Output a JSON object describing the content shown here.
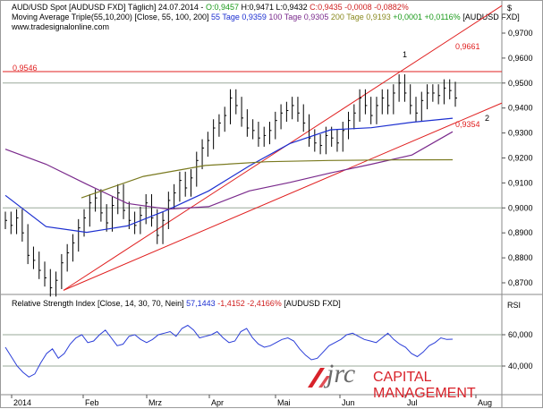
{
  "header": {
    "line1": {
      "symbol": "AUD/USD Spot [AUDUSD FXD]",
      "meta": "Täglich] 24.07.2014 -",
      "open": "O:0,9457",
      "high": "H:0,9471",
      "low": "L:0,9432",
      "close": "C:0,9435",
      "change": "-0,0008 -0,0882%"
    },
    "line2": {
      "label": "Moving Average Triple(55,10,200) [Close, 55, 100, 200]",
      "ma55": "55 Tage 0,9359",
      "ma100": "100 Tage 0,9305",
      "ma200": "200 Tage 0,9193",
      "change": "+0,0001 +0,0116%",
      "symbol": "[AUDUSD FXD]"
    },
    "website": "www.tradesignalonline.com",
    "currency_label": "$"
  },
  "annotations": {
    "level_0_9546": "0,9546",
    "level_0_9661": "0,9661",
    "level_0_9354": "0,9354",
    "marker_1": "1",
    "marker_2": "2"
  },
  "rsi_header": {
    "label": "Relative Strength Index [Close, 14, 30, 70, Nein]",
    "value": "57,1443",
    "change": "-1,4152 -2,4166%",
    "symbol": "[AUDUSD FXD]",
    "axis_label": "RSI"
  },
  "logo": {
    "brand": "jrc",
    "tagline": "CAPITAL MANAGEMENT"
  },
  "colors": {
    "price": "#000000",
    "ma55": "#1c2fd0",
    "ma100": "#7a2a8c",
    "ma200": "#7a7a20",
    "trend": "#e02020",
    "rsi": "#2a3dd8",
    "grid": "#9aa89a",
    "logo_red": "#d8222a",
    "logo_gray": "#6a6a6a"
  },
  "chart_data": [
    {
      "type": "candlestick",
      "title": "AUD/USD Spot [AUDUSD FXD]",
      "ylim": [
        0.865,
        0.98
      ],
      "y_ticks": [
        "0,9700",
        "0,9600",
        "0,9500",
        "0,9400",
        "0,9300",
        "0,9200",
        "0,9100",
        "0,9000",
        "0,8900",
        "0,8800",
        "0,8700"
      ],
      "x_ticks": [
        "2014",
        "Feb",
        "Mrz",
        "Apr",
        "Mai",
        "Jun",
        "Jul",
        "Aug"
      ],
      "horizontal_line": 0.9546,
      "series": [
        {
          "name": "Close",
          "values": [
            0.895,
            0.893,
            0.896,
            0.89,
            0.881,
            0.879,
            0.875,
            0.872,
            0.868,
            0.871,
            0.878,
            0.882,
            0.886,
            0.892,
            0.896,
            0.902,
            0.904,
            0.898,
            0.894,
            0.901,
            0.906,
            0.899,
            0.895,
            0.893,
            0.897,
            0.902,
            0.896,
            0.889,
            0.895,
            0.903,
            0.906,
            0.911,
            0.908,
            0.912,
            0.919,
            0.924,
            0.927,
            0.932,
            0.934,
            0.937,
            0.944,
            0.941,
            0.936,
            0.932,
            0.931,
            0.928,
            0.929,
            0.931,
            0.935,
            0.938,
            0.939,
            0.941,
            0.938,
            0.934,
            0.928,
            0.926,
            0.925,
            0.929,
            0.928,
            0.926,
            0.931,
            0.935,
            0.938,
            0.944,
            0.941,
            0.937,
            0.941,
            0.944,
            0.941,
            0.946,
            0.95,
            0.946,
            0.941,
            0.938,
            0.943,
            0.946,
            0.946,
            0.945,
            0.948,
            0.947,
            0.944
          ]
        },
        {
          "name": "55 Tage",
          "values": [
            0.905,
            0.8925,
            0.8902,
            0.8928,
            0.8993,
            0.9068,
            0.9168,
            0.9258,
            0.9313,
            0.9321,
            0.9343,
            0.9359
          ]
        },
        {
          "name": "100 Tage",
          "values": [
            0.9235,
            0.9175,
            0.9095,
            0.9018,
            0.8995,
            0.9005,
            0.9068,
            0.9102,
            0.914,
            0.9175,
            0.9212,
            0.9305
          ]
        },
        {
          "name": "200 Tage",
          "values": [
            0.904,
            0.9126,
            0.917,
            0.9185,
            0.919,
            0.9192,
            0.9193
          ]
        }
      ],
      "trendlines": [
        {
          "name": "1",
          "from": [
            0.867
          ],
          "to": [
            0.9661
          ]
        },
        {
          "name": "2",
          "from": [
            0.867
          ],
          "to": [
            0.9354
          ]
        }
      ]
    },
    {
      "type": "line",
      "title": "Relative Strength Index [Close, 14, 30, 70, Nein]",
      "ylim": [
        30,
        80
      ],
      "y_ticks": [
        "60,000",
        "40,000"
      ],
      "series": [
        {
          "name": "RSI",
          "values": [
            52,
            46,
            40,
            36,
            33,
            35,
            42,
            48,
            51,
            45,
            48,
            54,
            58,
            60,
            55,
            56,
            60,
            63,
            58,
            53,
            54,
            59,
            60,
            57,
            55,
            57,
            60,
            61,
            62,
            59,
            64,
            66,
            63,
            58,
            59,
            60,
            62,
            58,
            55,
            56,
            62,
            64,
            58,
            54,
            52,
            53,
            55,
            57,
            58,
            56,
            51,
            47,
            44,
            45,
            49,
            53,
            55,
            57,
            60,
            61,
            59,
            57,
            56,
            55,
            58,
            61,
            57,
            54,
            52,
            48,
            46,
            49,
            53,
            55,
            58,
            57,
            57.1443
          ]
        }
      ]
    }
  ]
}
